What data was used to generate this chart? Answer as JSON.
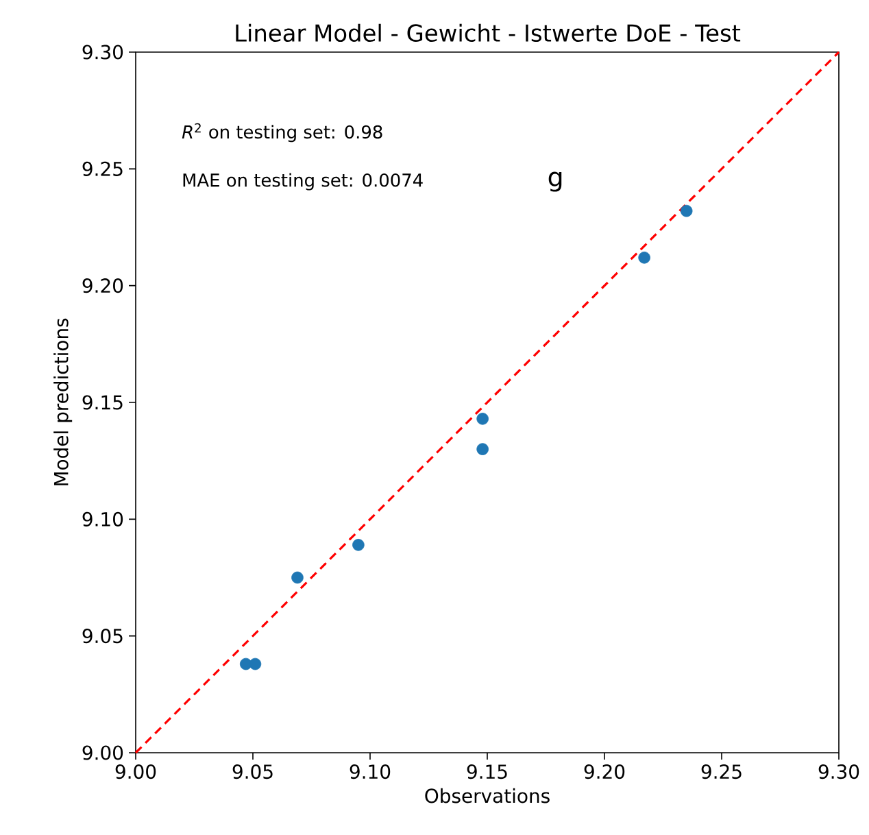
{
  "chart_data": {
    "type": "scatter",
    "title": "Linear Model - Gewicht - Istwerte DoE - Test",
    "xlabel": "Observations",
    "ylabel": "Model predictions",
    "xlim": [
      9.0,
      9.3
    ],
    "ylim": [
      9.0,
      9.3
    ],
    "xticks": [
      {
        "value": 9.0,
        "label": "9.00"
      },
      {
        "value": 9.05,
        "label": "9.05"
      },
      {
        "value": 9.1,
        "label": "9.10"
      },
      {
        "value": 9.15,
        "label": "9.15"
      },
      {
        "value": 9.2,
        "label": "9.20"
      },
      {
        "value": 9.25,
        "label": "9.25"
      },
      {
        "value": 9.3,
        "label": "9.30"
      }
    ],
    "yticks": [
      {
        "value": 9.0,
        "label": "9.00"
      },
      {
        "value": 9.05,
        "label": "9.05"
      },
      {
        "value": 9.1,
        "label": "9.10"
      },
      {
        "value": 9.15,
        "label": "9.15"
      },
      {
        "value": 9.2,
        "label": "9.20"
      },
      {
        "value": 9.25,
        "label": "9.25"
      },
      {
        "value": 9.3,
        "label": "9.30"
      }
    ],
    "annotations": [
      "*R*$^{2}$ on testing set: 0.98",
      "MAE on testing set: 0.0074",
      "g"
    ],
    "series": [
      {
        "color": "#1f77b4",
        "marker": "circle",
        "x": [
          9.047,
          9.051,
          9.069,
          9.095,
          9.148,
          9.148,
          9.217,
          9.235
        ],
        "values": [
          9.038,
          9.038,
          9.075,
          9.089,
          9.143,
          9.13,
          9.212,
          9.232
        ]
      },
      {
        "type": "line",
        "color": "#ff0000",
        "line_style": "dashed",
        "marker": "none",
        "x": [
          9.0,
          9.3
        ],
        "values": [
          9.0,
          9.3
        ]
      }
    ]
  }
}
